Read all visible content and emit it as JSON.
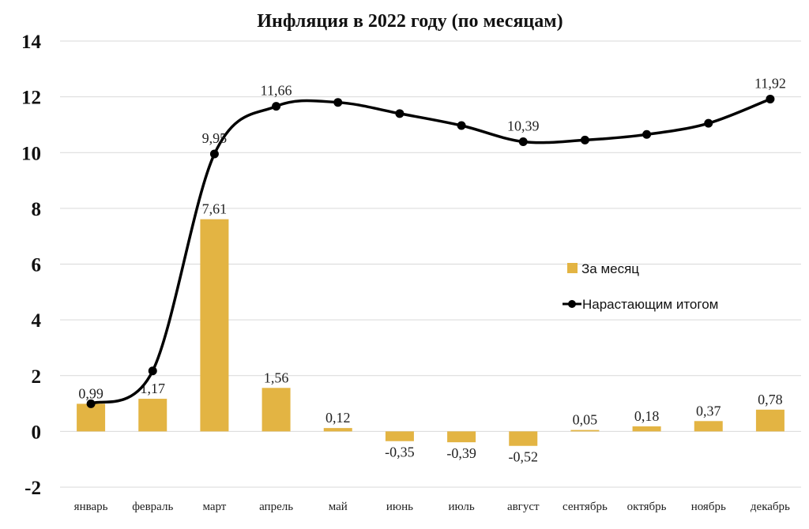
{
  "chart_data": {
    "type": "bar",
    "title": "Инфляция в 2022 году (по месяцам)",
    "categories": [
      "январь",
      "февраль",
      "март",
      "апрель",
      "май",
      "июнь",
      "июль",
      "август",
      "сентябрь",
      "октябрь",
      "ноябрь",
      "декабрь"
    ],
    "ylim": [
      -2,
      14
    ],
    "yticks": [
      -2,
      0,
      2,
      4,
      6,
      8,
      10,
      12,
      14
    ],
    "grid": true,
    "legend_position": "right",
    "series": [
      {
        "name": "За месяц",
        "type": "bar",
        "color": "#e3b443",
        "values": [
          0.99,
          1.17,
          7.61,
          1.56,
          0.12,
          -0.35,
          -0.39,
          -0.52,
          0.05,
          0.18,
          0.37,
          0.78
        ],
        "labels": [
          "0,99",
          "1,17",
          "7,61",
          "1,56",
          "0,12",
          "-0,35",
          "-0,39",
          "-0,52",
          "0,05",
          "0,18",
          "0,37",
          "0,78"
        ]
      },
      {
        "name": "Нарастающим итогом",
        "type": "line",
        "color": "#000000",
        "values": [
          0.99,
          2.17,
          9.95,
          11.66,
          11.8,
          11.4,
          10.97,
          10.39,
          10.45,
          10.65,
          11.05,
          11.92
        ],
        "labels": [
          "",
          "",
          "9,95",
          "11,66",
          "",
          "",
          "",
          "10,39",
          "",
          "",
          "",
          "11,92"
        ]
      }
    ]
  }
}
